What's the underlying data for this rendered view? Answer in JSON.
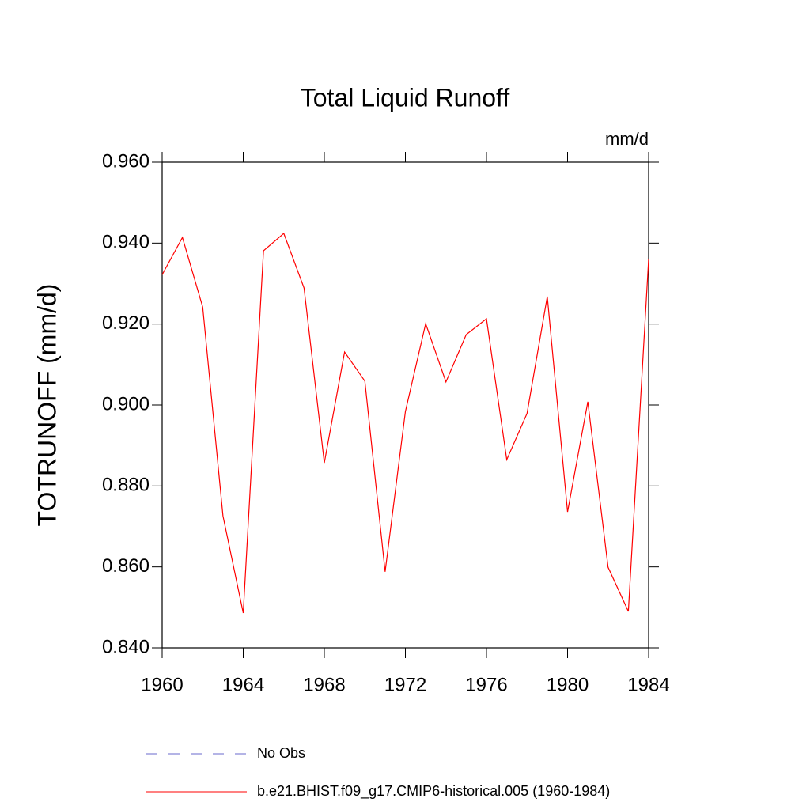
{
  "chart_data": {
    "type": "line",
    "title": "Total Liquid Runoff",
    "units": "mm/d",
    "y_label": "TOTRUNOFF  (mm/d)",
    "x": [
      1960,
      1961,
      1962,
      1963,
      1964,
      1965,
      1966,
      1967,
      1968,
      1969,
      1970,
      1971,
      1972,
      1973,
      1974,
      1975,
      1976,
      1977,
      1978,
      1979,
      1980,
      1981,
      1982,
      1983,
      1984
    ],
    "series": [
      {
        "name": "No Obs",
        "color": "#6a6acd",
        "dashed": true,
        "values": [
          null,
          null,
          null,
          null,
          null,
          null,
          null,
          null,
          null,
          null,
          null,
          null,
          null,
          null,
          null,
          null,
          null,
          null,
          null,
          null,
          null,
          null,
          null,
          null,
          null
        ]
      },
      {
        "name": "b.e21.BHIST.f09_g17.CMIP6-historical.005 (1960-1984)",
        "color": "#ff0000",
        "dashed": false,
        "values": [
          0.9322,
          0.9414,
          0.9242,
          0.8726,
          0.8486,
          0.9381,
          0.9424,
          0.9289,
          0.8857,
          0.9131,
          0.9059,
          0.8588,
          0.8984,
          0.9201,
          0.9057,
          0.9174,
          0.9213,
          0.8865,
          0.8979,
          0.9268,
          0.8736,
          0.9008,
          0.8599,
          0.849,
          0.936
        ]
      }
    ],
    "xlim": [
      1960,
      1984
    ],
    "xticks": [
      1960,
      1964,
      1968,
      1972,
      1976,
      1980,
      1984
    ],
    "ylim": [
      0.84,
      0.96
    ],
    "yticks": [
      {
        "value": 0.84,
        "label": "0.840"
      },
      {
        "value": 0.86,
        "label": "0.860"
      },
      {
        "value": 0.88,
        "label": "0.880"
      },
      {
        "value": 0.9,
        "label": "0.900"
      },
      {
        "value": 0.92,
        "label": "0.920"
      },
      {
        "value": 0.94,
        "label": "0.940"
      },
      {
        "value": 0.96,
        "label": "0.960"
      }
    ],
    "grid": false
  }
}
